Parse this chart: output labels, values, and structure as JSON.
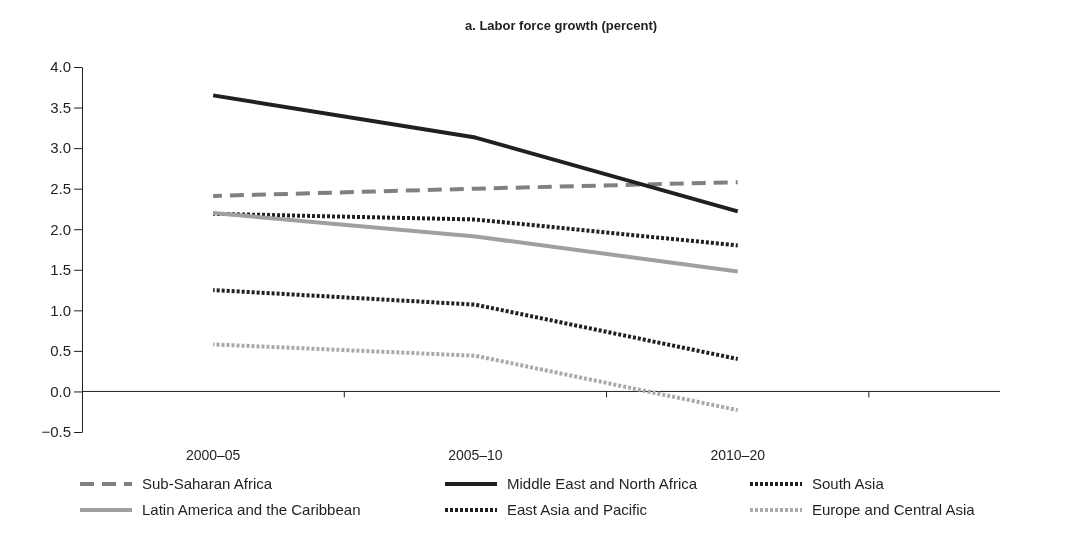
{
  "chart_data": {
    "type": "line",
    "title": "a. Labor force growth (percent)",
    "categories": [
      "2000–05",
      "2005–10",
      "2010–20"
    ],
    "series": [
      {
        "name": "Sub-Saharan Africa",
        "color": "#808080",
        "line_style": "dashed",
        "values": [
          2.41,
          2.5,
          2.58
        ]
      },
      {
        "name": "Middle East and North Africa",
        "color": "#231f20",
        "line_style": "solid",
        "values": [
          3.65,
          3.13,
          2.22
        ]
      },
      {
        "name": "South Asia",
        "color": "#231f20",
        "line_style": "dotted",
        "values": [
          2.19,
          2.12,
          1.8
        ]
      },
      {
        "name": "Latin America and the Caribbean",
        "color": "#a0a0a0",
        "line_style": "solid",
        "values": [
          2.2,
          1.91,
          1.48
        ]
      },
      {
        "name": "East Asia and Pacific",
        "color": "#231f20",
        "line_style": "dotted",
        "values": [
          1.25,
          1.07,
          0.4
        ]
      },
      {
        "name": "Europe and Central Asia",
        "color": "#a7a9ac",
        "line_style": "dotted",
        "values": [
          0.58,
          0.44,
          -0.23
        ]
      }
    ],
    "ylim": [
      -0.5,
      4
    ],
    "yticks": [
      {
        "value": -0.5,
        "label": "−0.5"
      },
      {
        "value": 0,
        "label": "0.0"
      },
      {
        "value": 0.5,
        "label": "0.5"
      },
      {
        "value": 1,
        "label": "1.0"
      },
      {
        "value": 1.5,
        "label": "1.5"
      },
      {
        "value": 2,
        "label": "2.0"
      },
      {
        "value": 2.5,
        "label": "2.5"
      },
      {
        "value": 3,
        "label": "3.0"
      },
      {
        "value": 3.5,
        "label": "3.5"
      },
      {
        "value": 4,
        "label": "4.0"
      }
    ],
    "legend": "bottom",
    "marker": "none"
  }
}
